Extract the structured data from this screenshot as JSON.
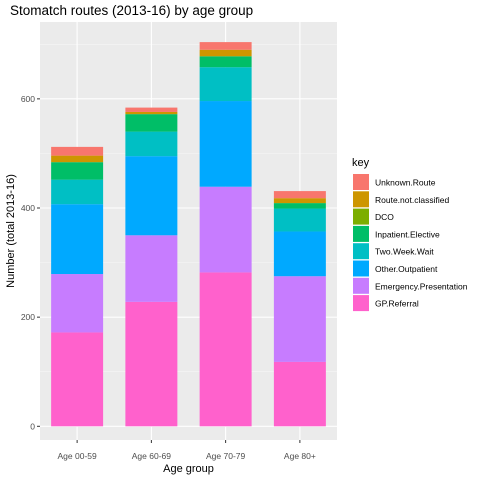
{
  "chart_data": {
    "type": "bar",
    "stacked": true,
    "title": "Stomatch routes (2013-16) by age group",
    "xlabel": "Age group",
    "ylabel": "Number (total 2013-16)",
    "ylim": [
      0,
      720
    ],
    "yticks": [
      0,
      200,
      400,
      600
    ],
    "grid": true,
    "legend_position": "right",
    "legend_title": "key",
    "categories": [
      "Age 00-59",
      "Age 60-69",
      "Age 70-79",
      "Age 80+"
    ],
    "series": [
      {
        "name": "GP.Referral",
        "color": "#FF61CC",
        "values": [
          172,
          228,
          282,
          118
        ]
      },
      {
        "name": "Emergency.Presentation",
        "color": "#C77CFF",
        "values": [
          107,
          122,
          157,
          157
        ]
      },
      {
        "name": "Other.Outpatient",
        "color": "#00A9FF",
        "values": [
          128,
          145,
          157,
          82
        ]
      },
      {
        "name": "Two.Week.Wait",
        "color": "#00BFC4",
        "values": [
          45,
          45,
          62,
          42
        ]
      },
      {
        "name": "Inpatient.Elective",
        "color": "#00BE67",
        "values": [
          32,
          32,
          20,
          10
        ]
      },
      {
        "name": "DCO",
        "color": "#7CAE00",
        "values": [
          0,
          0,
          0,
          0
        ]
      },
      {
        "name": "Route.not.classified",
        "color": "#CD9600",
        "values": [
          12,
          4,
          12,
          9
        ]
      },
      {
        "name": "Unknown.Route",
        "color": "#F8766D",
        "values": [
          16,
          8,
          14,
          13
        ]
      }
    ]
  }
}
